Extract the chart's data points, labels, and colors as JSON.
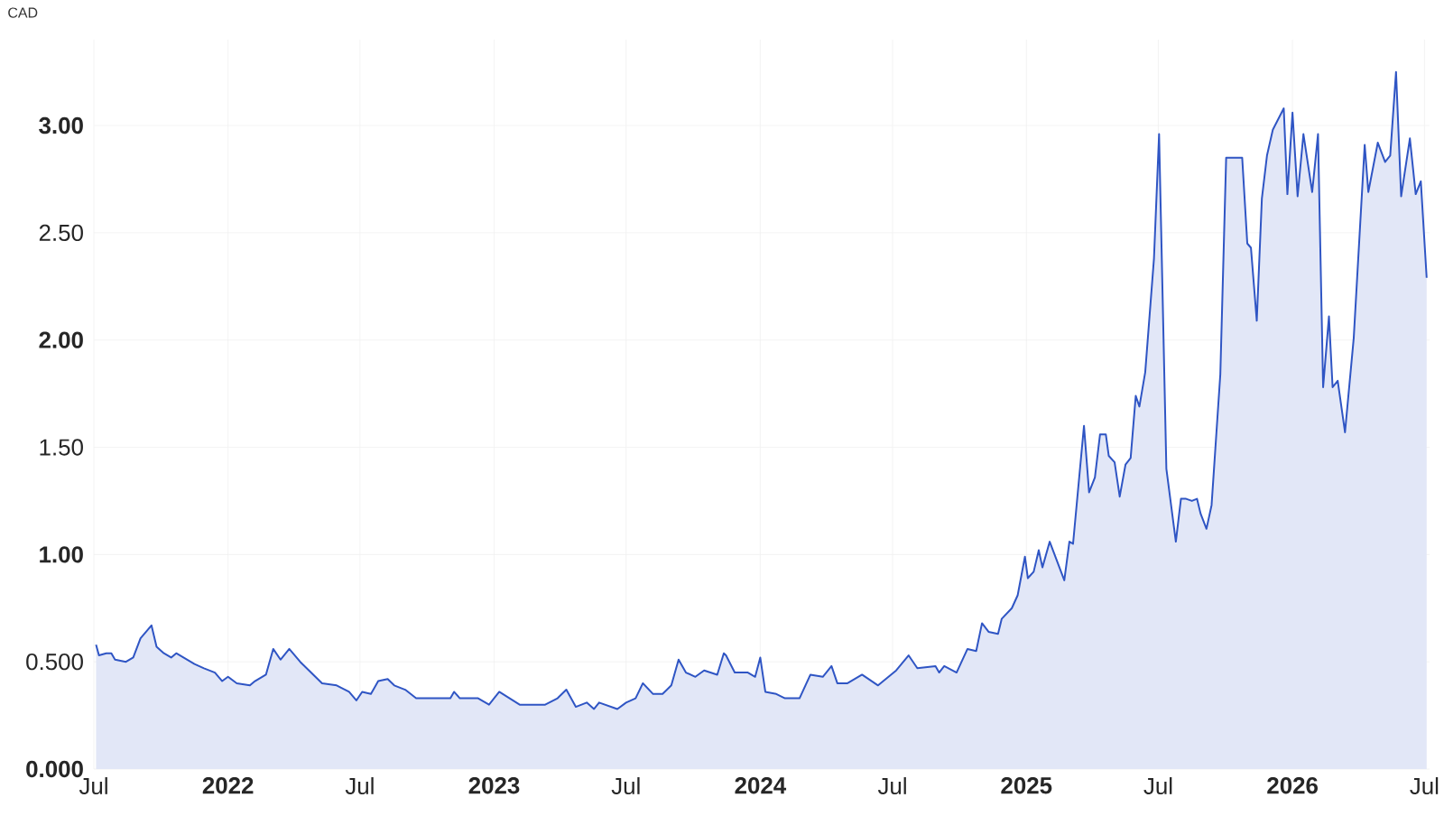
{
  "chart_data": {
    "type": "area",
    "ylabel": "CAD",
    "color": "#2f55c4",
    "grid": true,
    "xlim": [
      "2021-07-01",
      "2026-07-08"
    ],
    "ylim": [
      0,
      3.4
    ],
    "xticks": [
      {
        "value": "2021-07-01",
        "label": "Jul"
      },
      {
        "value": "2022-01-01",
        "label": "2022"
      },
      {
        "value": "2022-07-01",
        "label": "Jul"
      },
      {
        "value": "2023-01-01",
        "label": "2023"
      },
      {
        "value": "2023-07-01",
        "label": "Jul"
      },
      {
        "value": "2024-01-01",
        "label": "2024"
      },
      {
        "value": "2024-07-01",
        "label": "Jul"
      },
      {
        "value": "2025-01-01",
        "label": "2025"
      },
      {
        "value": "2025-07-01",
        "label": "Jul"
      },
      {
        "value": "2026-01-01",
        "label": "2026"
      },
      {
        "value": "2026-07-01",
        "label": "Jul"
      }
    ],
    "yticks": [
      {
        "value": 0,
        "label": "0.000"
      },
      {
        "value": 0.5,
        "label": "0.500"
      },
      {
        "value": 1,
        "label": "1.00"
      },
      {
        "value": 1.5,
        "label": "1.50"
      },
      {
        "value": 2,
        "label": "2.00"
      },
      {
        "value": 2.5,
        "label": "2.50"
      },
      {
        "value": 3,
        "label": "3.00"
      }
    ],
    "x": [
      "2021-07-04",
      "2021-07-08",
      "2021-07-18",
      "2021-07-25",
      "2021-07-30",
      "2021-08-14",
      "2021-08-24",
      "2021-09-03",
      "2021-09-18",
      "2021-09-25",
      "2021-10-05",
      "2021-10-15",
      "2021-10-22",
      "2021-11-16",
      "2021-11-29",
      "2021-12-14",
      "2021-12-24",
      "2022-01-01",
      "2022-01-13",
      "2022-01-31",
      "2022-02-07",
      "2022-02-22",
      "2022-03-04",
      "2022-03-14",
      "2022-03-26",
      "2022-04-10",
      "2022-05-10",
      "2022-05-30",
      "2022-06-16",
      "2022-06-26",
      "2022-07-04",
      "2022-07-16",
      "2022-07-26",
      "2022-08-08",
      "2022-08-17",
      "2022-09-01",
      "2022-09-16",
      "2022-09-26",
      "2022-11-02",
      "2022-11-07",
      "2022-11-15",
      "2022-12-10",
      "2022-12-25",
      "2023-01-08",
      "2023-02-05",
      "2023-03-12",
      "2023-03-29",
      "2023-04-10",
      "2023-04-23",
      "2023-05-08",
      "2023-05-18",
      "2023-05-25",
      "2023-06-19",
      "2023-07-01",
      "2023-07-14",
      "2023-07-24",
      "2023-08-07",
      "2023-08-20",
      "2023-09-01",
      "2023-09-11",
      "2023-09-21",
      "2023-10-04",
      "2023-10-16",
      "2023-11-03",
      "2023-11-12",
      "2023-11-15",
      "2023-11-27",
      "2023-12-15",
      "2023-12-25",
      "2024-01-01",
      "2024-01-08",
      "2024-01-23",
      "2024-02-04",
      "2024-02-24",
      "2024-03-10",
      "2024-03-27",
      "2024-04-08",
      "2024-04-16",
      "2024-04-30",
      "2024-05-20",
      "2024-06-11",
      "2024-07-06",
      "2024-07-23",
      "2024-08-04",
      "2024-08-29",
      "2024-09-03",
      "2024-09-10",
      "2024-09-27",
      "2024-10-12",
      "2024-10-24",
      "2024-11-01",
      "2024-11-10",
      "2024-11-23",
      "2024-11-28",
      "2024-12-12",
      "2024-12-20",
      "2024-12-30",
      "2025-01-03",
      "2025-01-11",
      "2025-01-18",
      "2025-01-23",
      "2025-02-02",
      "2025-02-22",
      "2025-03-01",
      "2025-03-06",
      "2025-03-21",
      "2025-03-28",
      "2025-04-05",
      "2025-04-12",
      "2025-04-20",
      "2025-04-24",
      "2025-05-02",
      "2025-05-09",
      "2025-05-17",
      "2025-05-24",
      "2025-05-31",
      "2025-06-05",
      "2025-06-13",
      "2025-06-25",
      "2025-07-02",
      "2025-07-12",
      "2025-07-25",
      "2025-08-01",
      "2025-08-08",
      "2025-08-16",
      "2025-08-23",
      "2025-08-28",
      "2025-09-05",
      "2025-09-12",
      "2025-09-24",
      "2025-10-02",
      "2025-10-09",
      "2025-10-24",
      "2025-10-31",
      "2025-11-05",
      "2025-11-13",
      "2025-11-20",
      "2025-11-27",
      "2025-12-05",
      "2025-12-20",
      "2025-12-25",
      "2026-01-01",
      "2026-01-08",
      "2026-01-16",
      "2026-01-28",
      "2026-02-05",
      "2026-02-12",
      "2026-02-20",
      "2026-02-25",
      "2026-03-04",
      "2026-03-14",
      "2026-03-26",
      "2026-04-10",
      "2026-04-15",
      "2026-04-28",
      "2026-05-08",
      "2026-05-15",
      "2026-05-23",
      "2026-05-30",
      "2026-06-11",
      "2026-06-19",
      "2026-06-26",
      "2026-07-04"
    ],
    "values": [
      0.58,
      0.53,
      0.54,
      0.54,
      0.51,
      0.5,
      0.52,
      0.61,
      0.67,
      0.57,
      0.54,
      0.52,
      0.54,
      0.49,
      0.47,
      0.45,
      0.41,
      0.43,
      0.4,
      0.39,
      0.41,
      0.44,
      0.56,
      0.51,
      0.56,
      0.5,
      0.4,
      0.39,
      0.36,
      0.32,
      0.36,
      0.35,
      0.41,
      0.42,
      0.39,
      0.37,
      0.33,
      0.33,
      0.33,
      0.36,
      0.33,
      0.33,
      0.3,
      0.36,
      0.3,
      0.3,
      0.33,
      0.37,
      0.29,
      0.31,
      0.28,
      0.31,
      0.28,
      0.31,
      0.33,
      0.4,
      0.35,
      0.35,
      0.39,
      0.51,
      0.45,
      0.43,
      0.46,
      0.44,
      0.54,
      0.53,
      0.45,
      0.45,
      0.43,
      0.52,
      0.36,
      0.35,
      0.33,
      0.33,
      0.44,
      0.43,
      0.48,
      0.4,
      0.4,
      0.44,
      0.39,
      0.46,
      0.53,
      0.47,
      0.48,
      0.45,
      0.48,
      0.45,
      0.56,
      0.55,
      0.68,
      0.64,
      0.63,
      0.7,
      0.75,
      0.81,
      0.99,
      0.89,
      0.92,
      1.02,
      0.94,
      1.06,
      0.88,
      1.06,
      1.05,
      1.6,
      1.29,
      1.36,
      1.56,
      1.56,
      1.46,
      1.43,
      1.27,
      1.42,
      1.45,
      1.74,
      1.69,
      1.85,
      2.38,
      2.96,
      1.4,
      1.06,
      1.26,
      1.26,
      1.25,
      1.26,
      1.19,
      1.12,
      1.23,
      1.84,
      2.85,
      2.85,
      2.85,
      2.45,
      2.43,
      2.09,
      2.66,
      2.86,
      2.98,
      3.08,
      2.68,
      3.06,
      2.67,
      2.96,
      2.69,
      2.96,
      1.78,
      2.11,
      1.78,
      1.81,
      1.57,
      2.01,
      2.91,
      2.69,
      2.92,
      2.83,
      2.86,
      3.25,
      2.67,
      2.94,
      2.68,
      2.74,
      2.29
    ]
  }
}
